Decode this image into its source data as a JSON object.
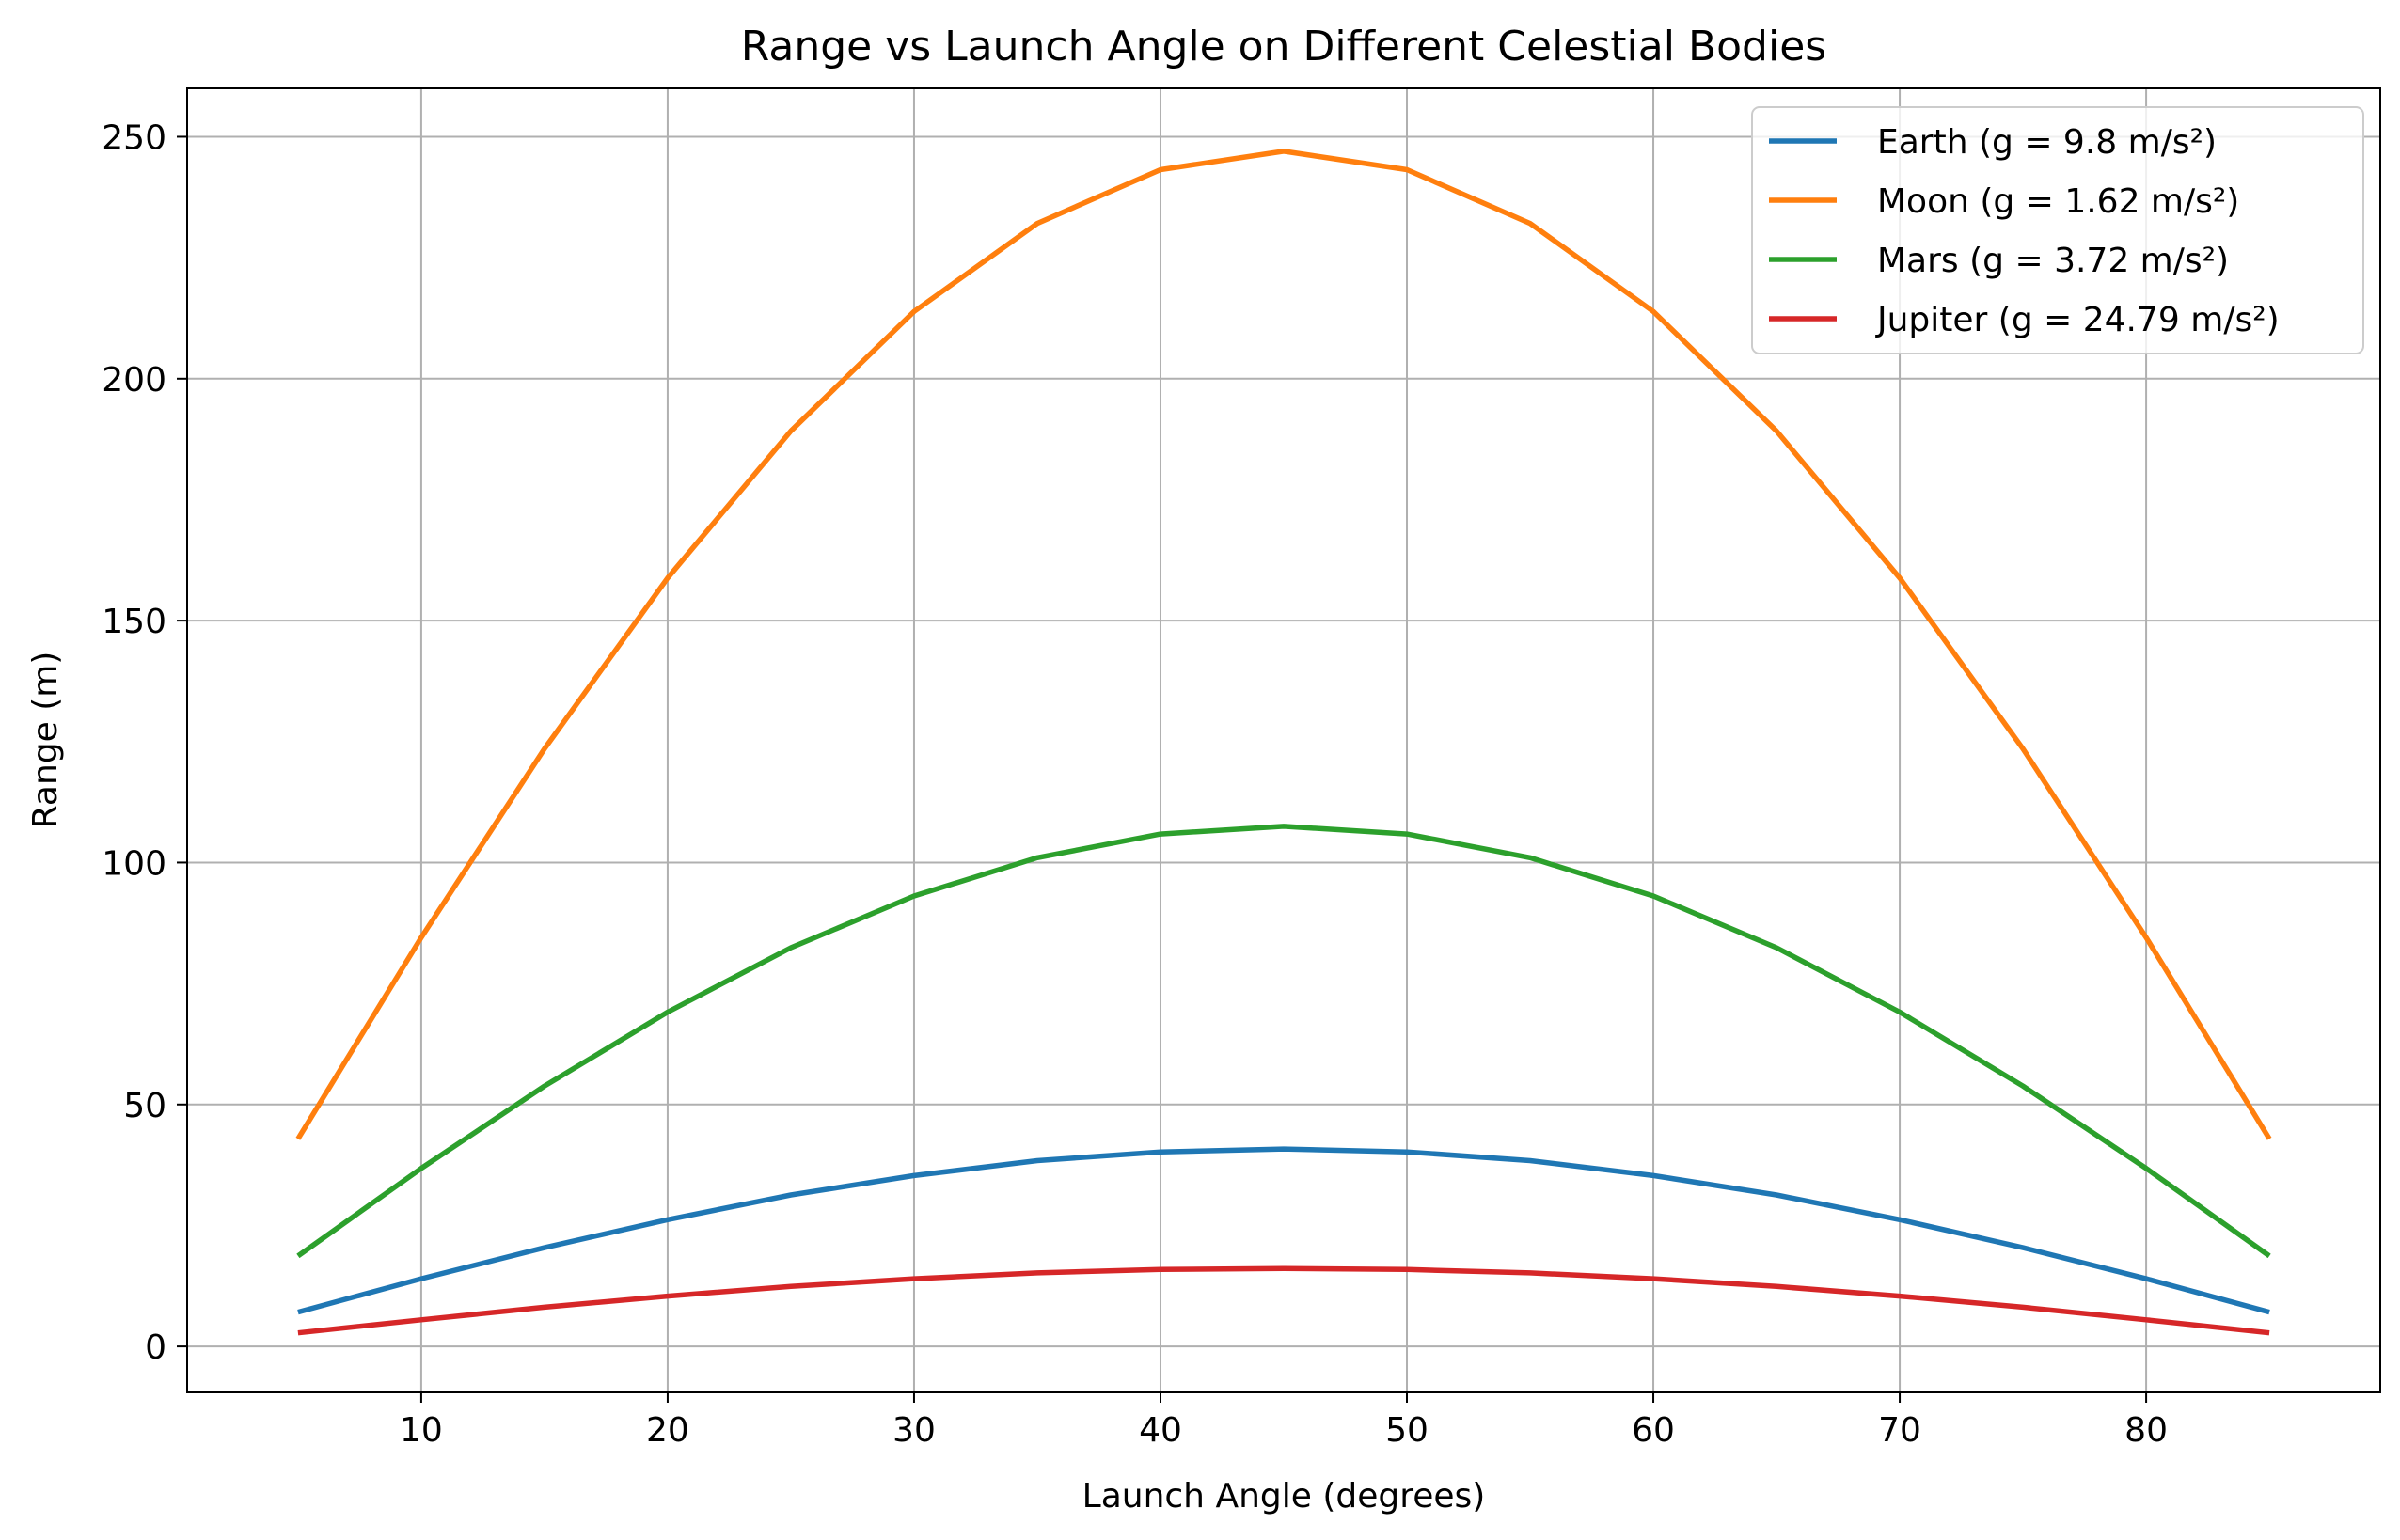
{
  "chart_data": {
    "type": "line",
    "title": "Range vs Launch Angle on Different Celestial Bodies",
    "xlabel": "Launch Angle (degrees)",
    "ylabel": "Range (m)",
    "xlim": [
      0.5,
      89.5
    ],
    "ylim": [
      -9.5,
      260
    ],
    "xticks": [
      10,
      20,
      30,
      40,
      50,
      60,
      70,
      80
    ],
    "yticks": [
      0,
      50,
      100,
      150,
      200,
      250
    ],
    "grid": true,
    "legend_position": "top-right",
    "x": [
      5,
      10,
      15,
      20,
      25,
      30,
      35,
      40,
      45,
      50,
      55,
      60,
      65,
      70,
      75,
      80,
      85
    ],
    "series": [
      {
        "name": "Earth (g = 9.8 m/s²)",
        "color": "#1f77b4",
        "values": [
          7.1,
          14.0,
          20.4,
          26.2,
          31.3,
          35.3,
          38.4,
          40.2,
          40.8,
          40.2,
          38.4,
          35.3,
          31.3,
          26.2,
          20.4,
          14.0,
          7.1
        ]
      },
      {
        "name": "Moon (g = 1.62 m/s²)",
        "color": "#ff7f0e",
        "values": [
          42.9,
          84.5,
          123.5,
          158.8,
          189.2,
          213.9,
          232.1,
          243.2,
          247.0,
          243.2,
          232.1,
          213.9,
          189.2,
          158.8,
          123.5,
          84.5,
          42.9
        ]
      },
      {
        "name": "Mars (g = 3.72 m/s²)",
        "color": "#2ca02c",
        "values": [
          18.7,
          36.8,
          53.8,
          69.1,
          82.4,
          93.1,
          101.0,
          105.9,
          107.5,
          105.9,
          101.0,
          93.1,
          82.4,
          69.1,
          53.8,
          36.8,
          18.7
        ]
      },
      {
        "name": "Jupiter (g = 24.79 m/s²)",
        "color": "#d62728",
        "values": [
          2.8,
          5.5,
          8.1,
          10.4,
          12.4,
          14.0,
          15.2,
          15.9,
          16.1,
          15.9,
          15.2,
          14.0,
          12.4,
          10.4,
          8.1,
          5.5,
          2.8
        ]
      }
    ]
  }
}
